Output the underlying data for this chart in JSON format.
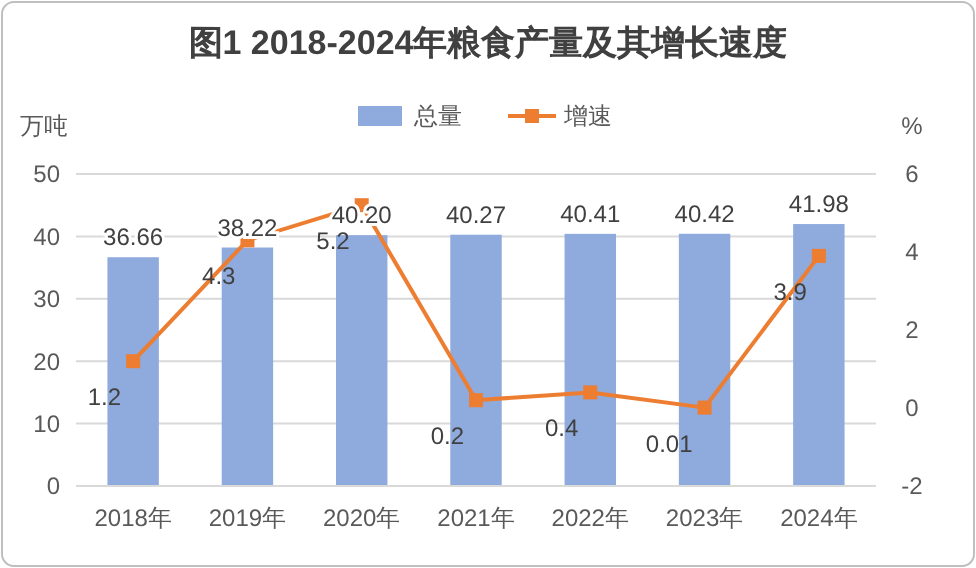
{
  "chart_data": {
    "type": "bar",
    "title": "图1  2018-2024年粮食产量及其增长速度",
    "ylabel": "万吨",
    "y2label": "%",
    "categories": [
      "2018年",
      "2019年",
      "2020年",
      "2021年",
      "2022年",
      "2023年",
      "2024年"
    ],
    "series": [
      {
        "name": "总量",
        "color": "#8faadc",
        "values": [
          36.66,
          38.22,
          40.2,
          40.27,
          40.41,
          40.42,
          41.98
        ]
      },
      {
        "name": "增速",
        "type": "line",
        "axis": "y2",
        "color": "#ed7d31",
        "marker": "square",
        "values": [
          1.2,
          4.3,
          5.2,
          0.2,
          0.4,
          0.01,
          3.9
        ]
      }
    ],
    "value_labels": [
      [
        "36.66",
        "38.22",
        "40.20",
        "40.27",
        "40.41",
        "40.42",
        "41.98"
      ],
      [
        "1.2",
        "4.3",
        "5.2",
        "0.2",
        "0.4",
        "0.01",
        "3.9"
      ]
    ],
    "ylim": [
      0,
      50
    ],
    "yticks": [
      0,
      10,
      20,
      30,
      40,
      50
    ],
    "y2lim": [
      -2,
      6
    ],
    "y2ticks": [
      -2,
      0,
      2,
      4,
      6
    ],
    "grid": "y",
    "legend": "top"
  }
}
